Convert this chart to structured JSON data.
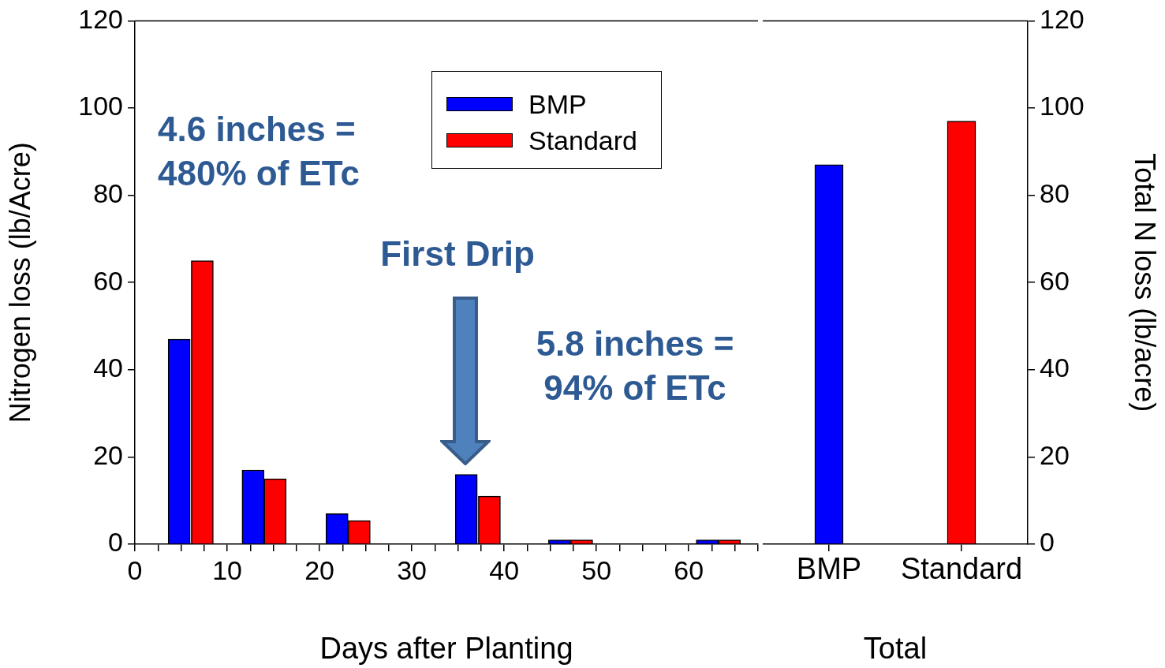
{
  "chart_data": [
    {
      "type": "bar",
      "xlabel": "Days after Planting",
      "ylabel": "Nitrogen loss (lb/Acre)",
      "xlim": [
        0,
        67.5
      ],
      "xticks": [
        0,
        {
          "value": 2.5,
          "label": null
        },
        {
          "value": 5,
          "label": null
        },
        {
          "value": 7.5,
          "label": null
        },
        10,
        {
          "value": 12.5,
          "label": null
        },
        {
          "value": 15,
          "label": null
        },
        {
          "value": 17.5,
          "label": null
        },
        20,
        {
          "value": 22.5,
          "label": null
        },
        {
          "value": 25,
          "label": null
        },
        {
          "value": 27.5,
          "label": null
        },
        30,
        {
          "value": 32.5,
          "label": null
        },
        {
          "value": 35,
          "label": null
        },
        {
          "value": 37.5,
          "label": null
        },
        40,
        {
          "value": 42.5,
          "label": null
        },
        {
          "value": 45,
          "label": null
        },
        {
          "value": 47.5,
          "label": null
        },
        50,
        {
          "value": 52.5,
          "label": null
        },
        {
          "value": 55,
          "label": null
        },
        {
          "value": 57.5,
          "label": null
        },
        60,
        {
          "value": 62.5,
          "label": null
        },
        {
          "value": 65,
          "label": null
        },
        {
          "value": 67.5,
          "label": null
        }
      ],
      "ylim": [
        0,
        120
      ],
      "yticks": [
        0,
        20,
        40,
        60,
        80,
        100,
        120
      ],
      "grid": false,
      "legend": "top",
      "series": [
        {
          "name": "BMP",
          "color": "#0000ff",
          "x": [
            4.8,
            12.8,
            21.9,
            35.9,
            46,
            62
          ],
          "values": [
            47,
            17,
            7,
            16,
            1,
            1
          ]
        },
        {
          "name": "Standard",
          "color": "#ff0000",
          "x": [
            7.3,
            15.2,
            24.3,
            38.4,
            48.4,
            64.4
          ],
          "values": [
            65,
            15,
            5.4,
            11,
            1,
            1
          ]
        }
      ],
      "annotations": [
        "4.6 inches = 480% of ETc",
        "First Drip",
        "5.8 inches = 94% of ETc"
      ]
    },
    {
      "type": "bar",
      "xlabel": "Total",
      "y2label": "Total N loss (lb/acre)",
      "categories": [
        "BMP",
        "Standard"
      ],
      "y2lim": [
        0,
        120
      ],
      "y2ticks": [
        0,
        20,
        40,
        60,
        80,
        100,
        120
      ],
      "grid": false,
      "legend": false,
      "series": [
        {
          "colors": [
            "#0000ff",
            "#ff0000"
          ],
          "values": [
            87,
            97
          ],
          "axis": "y2"
        }
      ]
    }
  ]
}
